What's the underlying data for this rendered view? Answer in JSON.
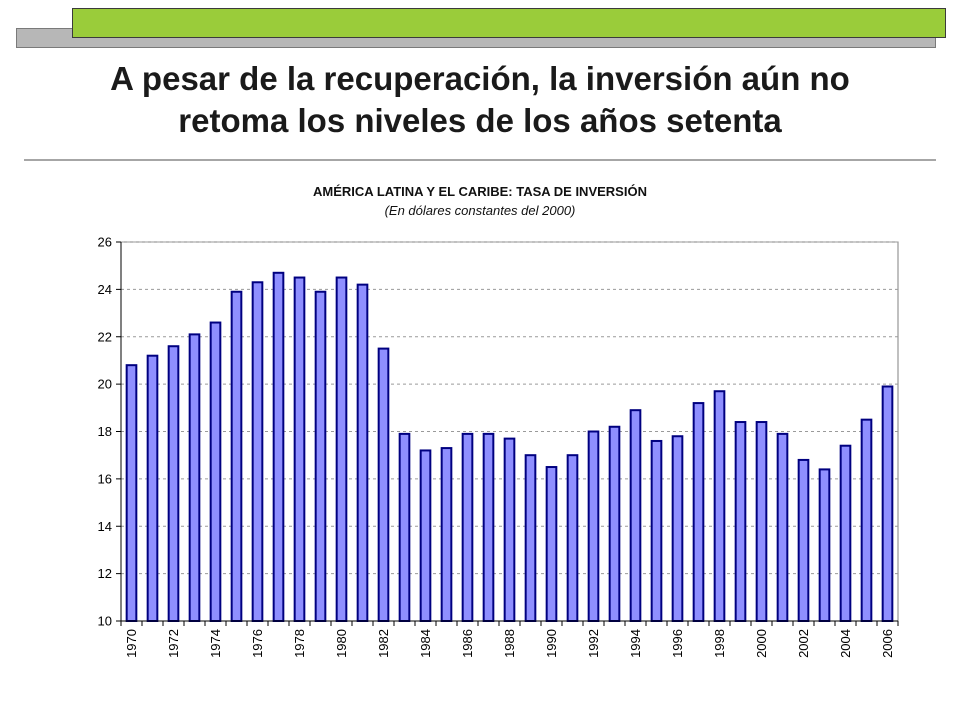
{
  "slide": {
    "title": "A pesar de la recuperación, la inversión aún no\nretoma los niveles de los años setenta"
  },
  "colors": {
    "accent_green": "#9acc3a",
    "accent_gray": "#b7b7b7",
    "bar_fill": "#8f8fff",
    "bar_stroke": "#000080"
  },
  "chart_data": {
    "type": "bar",
    "title": "AMÉRICA LATINA Y EL CARIBE: TASA DE INVERSIÓN",
    "subtitle": "(En dólares constantes del 2000)",
    "categories": [
      "1970",
      "1971",
      "1972",
      "1973",
      "1974",
      "1975",
      "1976",
      "1977",
      "1978",
      "1979",
      "1980",
      "1981",
      "1982",
      "1983",
      "1984",
      "1985",
      "1986",
      "1987",
      "1988",
      "1989",
      "1990",
      "1991",
      "1992",
      "1993",
      "1994",
      "1995",
      "1996",
      "1997",
      "1998",
      "1999",
      "2000",
      "2001",
      "2002",
      "2003",
      "2004",
      "2005",
      "2006"
    ],
    "x_tick_labels": [
      "1970",
      "1972",
      "1974",
      "1976",
      "1978",
      "1980",
      "1982",
      "1984",
      "1986",
      "1988",
      "1990",
      "1992",
      "1994",
      "1996",
      "1998",
      "2000",
      "2002",
      "2004",
      "2006"
    ],
    "values": [
      20.8,
      21.2,
      21.6,
      22.1,
      22.6,
      23.9,
      24.3,
      24.7,
      24.5,
      23.9,
      24.5,
      24.2,
      21.5,
      17.9,
      17.2,
      17.3,
      17.9,
      17.9,
      17.7,
      17.0,
      16.5,
      17.0,
      18.0,
      18.2,
      18.9,
      17.6,
      17.8,
      19.2,
      19.7,
      18.4,
      18.4,
      17.9,
      16.8,
      16.4,
      17.4,
      18.5,
      19.9
    ],
    "ylim": [
      10,
      26
    ],
    "y_ticks": [
      10,
      12,
      14,
      16,
      18,
      20,
      22,
      24,
      26
    ],
    "grid": "horizontal dashed",
    "legend": "none"
  }
}
